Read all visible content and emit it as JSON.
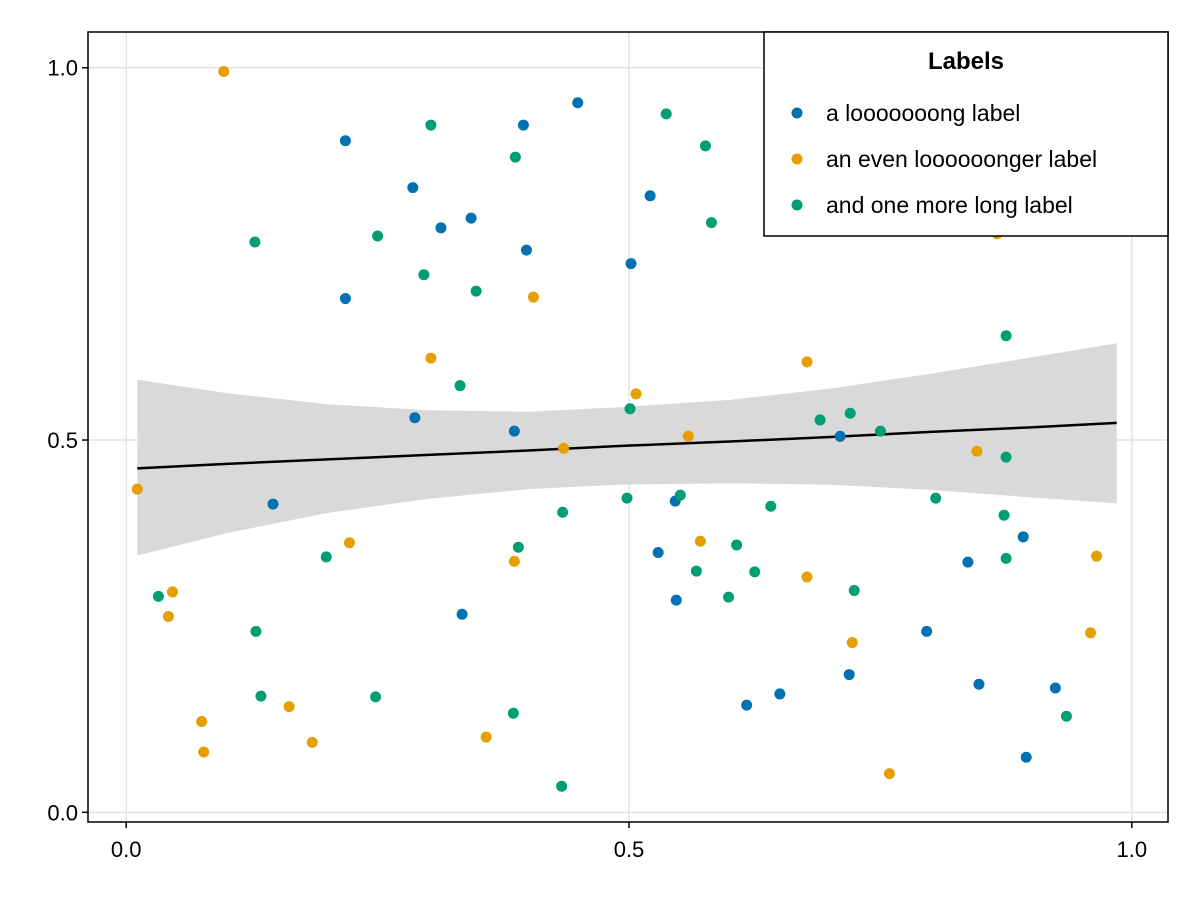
{
  "chart_data": {
    "type": "scatter",
    "title": "",
    "xlabel": "",
    "ylabel": "",
    "xlim": [
      -0.038,
      1.036
    ],
    "ylim": [
      -0.013,
      1.048
    ],
    "xticks": [
      {
        "value": 0.0,
        "label": "0.0"
      },
      {
        "value": 0.5,
        "label": "0.5"
      },
      {
        "value": 1.0,
        "label": "1.0"
      }
    ],
    "yticks": [
      {
        "value": 0.0,
        "label": "0.0"
      },
      {
        "value": 0.5,
        "label": "0.5"
      },
      {
        "value": 1.0,
        "label": "1.0"
      }
    ],
    "grid": true,
    "legend": {
      "title": "Labels",
      "placement": "top-right"
    },
    "series": [
      {
        "name": "a looooooong label",
        "color": "#0072B2",
        "x": [
          0.218,
          0.449,
          0.395,
          0.285,
          0.521,
          0.343,
          0.313,
          0.398,
          0.502,
          0.218,
          0.287,
          0.386,
          0.71,
          0.146,
          0.546,
          0.529,
          0.892,
          0.837,
          0.334,
          0.547,
          0.796,
          0.719,
          0.848,
          0.65,
          0.924,
          0.617,
          0.895
        ],
        "y": [
          0.902,
          0.953,
          0.923,
          0.839,
          0.828,
          0.798,
          0.785,
          0.755,
          0.737,
          0.69,
          0.53,
          0.512,
          0.505,
          0.414,
          0.418,
          0.349,
          0.37,
          0.336,
          0.266,
          0.285,
          0.243,
          0.185,
          0.172,
          0.159,
          0.167,
          0.144,
          0.074
        ]
      },
      {
        "name": "an even loooooonger label",
        "color": "#E69F00",
        "x": [
          0.097,
          0.303,
          0.405,
          0.677,
          0.507,
          0.559,
          0.435,
          0.846,
          0.866,
          0.011,
          0.222,
          0.571,
          0.386,
          0.677,
          0.965,
          0.046,
          0.042,
          0.722,
          0.959,
          0.075,
          0.162,
          0.185,
          0.077,
          0.358,
          0.759
        ],
        "y": [
          0.995,
          0.61,
          0.692,
          0.605,
          0.562,
          0.505,
          0.489,
          0.485,
          0.777,
          0.434,
          0.362,
          0.364,
          0.337,
          0.316,
          0.344,
          0.296,
          0.263,
          0.228,
          0.241,
          0.122,
          0.142,
          0.094,
          0.081,
          0.101,
          0.052
        ]
      },
      {
        "name": "and one more long label",
        "color": "#009E73",
        "x": [
          0.537,
          0.303,
          0.576,
          0.387,
          0.582,
          0.128,
          0.25,
          0.296,
          0.348,
          0.875,
          0.332,
          0.501,
          0.69,
          0.72,
          0.75,
          0.875,
          0.551,
          0.498,
          0.805,
          0.434,
          0.641,
          0.873,
          0.39,
          0.199,
          0.607,
          0.567,
          0.625,
          0.875,
          0.032,
          0.599,
          0.724,
          0.129,
          0.134,
          0.248,
          0.385,
          0.935,
          0.433
        ],
        "y": [
          0.938,
          0.923,
          0.895,
          0.88,
          0.792,
          0.766,
          0.774,
          0.722,
          0.7,
          0.64,
          0.573,
          0.542,
          0.527,
          0.536,
          0.512,
          0.477,
          0.426,
          0.422,
          0.422,
          0.403,
          0.411,
          0.399,
          0.356,
          0.343,
          0.359,
          0.324,
          0.323,
          0.341,
          0.29,
          0.289,
          0.298,
          0.243,
          0.156,
          0.155,
          0.133,
          0.129,
          0.035
        ]
      }
    ],
    "regression": {
      "color": "#000000",
      "band_color": "#D9D9D9",
      "x": [
        0.011,
        0.1,
        0.2,
        0.3,
        0.4,
        0.49,
        0.6,
        0.7,
        0.8,
        0.9,
        0.985
      ],
      "line": [
        0.462,
        0.468,
        0.474,
        0.48,
        0.486,
        0.492,
        0.498,
        0.504,
        0.511,
        0.517,
        0.523
      ],
      "lower": [
        0.345,
        0.375,
        0.402,
        0.421,
        0.434,
        0.44,
        0.442,
        0.44,
        0.433,
        0.423,
        0.415
      ],
      "upper": [
        0.581,
        0.563,
        0.548,
        0.54,
        0.538,
        0.544,
        0.554,
        0.569,
        0.589,
        0.611,
        0.63
      ]
    }
  }
}
